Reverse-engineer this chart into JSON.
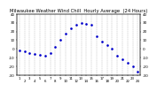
{
  "title": "Milwaukee Weather Wind Chill  Hourly Average  (24 Hours)",
  "title_fontsize": 3.8,
  "background_color": "#ffffff",
  "dot_color": "#0000cc",
  "grid_color": "#999999",
  "hours": [
    1,
    2,
    3,
    4,
    5,
    6,
    7,
    8,
    9,
    10,
    11,
    12,
    13,
    14,
    15,
    16,
    17,
    18,
    19,
    20,
    21,
    22,
    23,
    24
  ],
  "wind_chill": [
    -2,
    -3,
    -5,
    -6,
    -7,
    -8,
    -5,
    2,
    10,
    18,
    24,
    28,
    30,
    29,
    28,
    14,
    8,
    4,
    0,
    -8,
    -12,
    -16,
    -20,
    -26
  ],
  "ylim_min": -30,
  "ylim_max": 40,
  "left_ticks": [
    40,
    30,
    20,
    10,
    0,
    -10,
    -20,
    -30
  ],
  "right_ticks": [
    40,
    30,
    20,
    10,
    0,
    -10,
    -20,
    -30
  ],
  "tick_fontsize": 3.0,
  "xtick_fontsize": 2.8,
  "x_row1": [
    "1",
    "",
    "3",
    "",
    "5",
    "",
    "7",
    "",
    "9",
    "",
    "11",
    "",
    "13",
    "",
    "15",
    "",
    "17",
    "",
    "19",
    "",
    "21",
    "",
    "23",
    ""
  ],
  "x_row2": [
    "",
    "2",
    "",
    "4",
    "",
    "6",
    "",
    "8",
    "",
    "10",
    "",
    "12",
    "",
    "14",
    "",
    "16",
    "",
    "18",
    "",
    "20",
    "",
    "22",
    "",
    "24"
  ]
}
